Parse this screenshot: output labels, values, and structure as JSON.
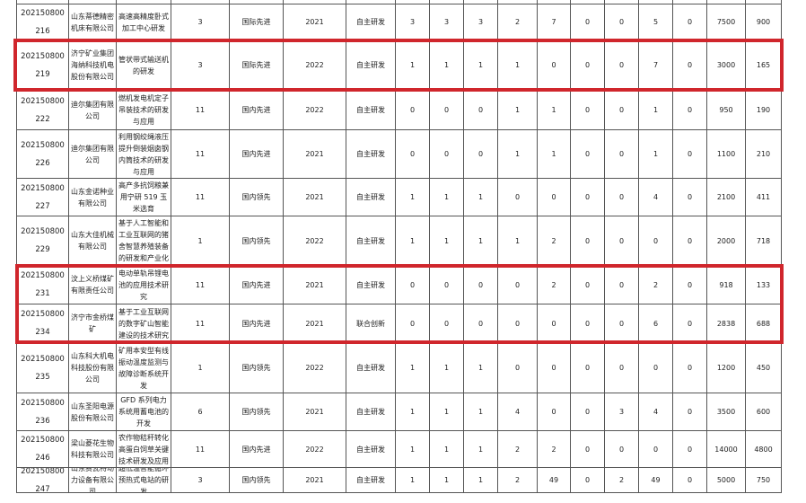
{
  "highlight_color": "#d0262c",
  "rows": [
    {
      "id": "",
      "company": "",
      "project": "",
      "n": "",
      "level": "",
      "year": "",
      "method": "",
      "v": [
        "",
        "",
        "",
        "",
        "",
        "",
        "",
        "",
        ""
      ],
      "a": "",
      "b": ""
    },
    {
      "id": "202150800216",
      "company": "山东蒂德精密机床有限公司",
      "project": "高速高精度卧式加工中心研发",
      "n": "3",
      "level": "国际先进",
      "year": "2021",
      "method": "自主研发",
      "v": [
        "3",
        "3",
        "3",
        "2",
        "7",
        "0",
        "0",
        "5",
        "0"
      ],
      "a": "7500",
      "b": "900"
    },
    {
      "id": "202150800219",
      "company": "济宁矿业集团海纳科技机电股份有限公司",
      "project": "管状带式输送机的研发",
      "n": "3",
      "level": "国际先进",
      "year": "2022",
      "method": "自主研发",
      "v": [
        "1",
        "1",
        "1",
        "1",
        "0",
        "0",
        "0",
        "7",
        "0"
      ],
      "a": "3000",
      "b": "165",
      "highlight": true
    },
    {
      "id": "202150800222",
      "company": "迪尔集团有限公司",
      "project": "燃机发电机定子吊装技术的研发与应用",
      "n": "11",
      "level": "国内先进",
      "year": "2022",
      "method": "自主研发",
      "v": [
        "0",
        "0",
        "0",
        "1",
        "1",
        "0",
        "0",
        "1",
        "0"
      ],
      "a": "950",
      "b": "190"
    },
    {
      "id": "202150800226",
      "company": "迪尔集团有限公司",
      "project": "利用钢绞绳液压提升倒装烟囱钢内筒技术的研发与应用",
      "n": "11",
      "level": "国内先进",
      "year": "2021",
      "method": "自主研发",
      "v": [
        "0",
        "0",
        "0",
        "1",
        "1",
        "0",
        "0",
        "1",
        "0"
      ],
      "a": "1100",
      "b": "210"
    },
    {
      "id": "202150800227",
      "company": "山东金诺种业有限公司",
      "project": "高产多抗饲粮兼用宁研 519 玉米选育",
      "n": "11",
      "level": "国内领先",
      "year": "2021",
      "method": "自主研发",
      "v": [
        "1",
        "1",
        "1",
        "0",
        "0",
        "0",
        "0",
        "4",
        "0"
      ],
      "a": "2100",
      "b": "411"
    },
    {
      "id": "202150800229",
      "company": "山东大佳机械有限公司",
      "project": "基于人工智能和工业互联网的猪舍智慧养殖装备的研发和产业化",
      "n": "1",
      "level": "国内领先",
      "year": "2022",
      "method": "自主研发",
      "v": [
        "1",
        "1",
        "1",
        "1",
        "2",
        "0",
        "0",
        "0",
        "0"
      ],
      "a": "2000",
      "b": "718"
    },
    {
      "id": "202150800231",
      "company": "汶上义桥煤矿有限责任公司",
      "project": "电动单轨吊锂电池的应用技术研究",
      "n": "11",
      "level": "国内先进",
      "year": "2021",
      "method": "自主研发",
      "v": [
        "0",
        "0",
        "0",
        "0",
        "2",
        "0",
        "0",
        "2",
        "0"
      ],
      "a": "918",
      "b": "133",
      "highlight": true
    },
    {
      "id": "202150800234",
      "company": "济宁市金桥煤矿",
      "project": "基于工业互联网的数字矿山智能建设的技术研究",
      "n": "11",
      "level": "国内先进",
      "year": "2021",
      "method": "联合创新",
      "v": [
        "0",
        "0",
        "0",
        "0",
        "0",
        "0",
        "0",
        "6",
        "0"
      ],
      "a": "2838",
      "b": "688",
      "highlight": true
    },
    {
      "id": "202150800235",
      "company": "山东科大机电科技股份有限公司",
      "project": "矿用本安型有线振动温度监测与故障诊断系统开发",
      "n": "1",
      "level": "国内领先",
      "year": "2022",
      "method": "自主研发",
      "v": [
        "1",
        "1",
        "1",
        "0",
        "0",
        "0",
        "0",
        "0",
        "0"
      ],
      "a": "1200",
      "b": "450"
    },
    {
      "id": "202150800236",
      "company": "山东圣阳电源股份有限公司",
      "project": "GFD 系列电力系统用蓄电池的开发",
      "n": "6",
      "level": "国内领先",
      "year": "2021",
      "method": "自主研发",
      "v": [
        "1",
        "1",
        "1",
        "4",
        "0",
        "0",
        "3",
        "4",
        "0"
      ],
      "a": "3500",
      "b": "600"
    },
    {
      "id": "202150800246",
      "company": "梁山菱花生物科技有限公司",
      "project": "农作物秸秆转化高蛋白饲草关键技术研发及应用",
      "n": "11",
      "level": "国内先进",
      "year": "2022",
      "method": "自主研发",
      "v": [
        "1",
        "1",
        "1",
        "2",
        "2",
        "0",
        "0",
        "0",
        "0"
      ],
      "a": "14000",
      "b": "4800"
    },
    {
      "id": "202150800247",
      "company": "山东赛瓦特动力设备有限公司",
      "project": "超低温智能循环预热式电站的研发",
      "n": "3",
      "level": "国内领先",
      "year": "2021",
      "method": "自主研发",
      "v": [
        "1",
        "1",
        "1",
        "2",
        "49",
        "0",
        "2",
        "49",
        "0"
      ],
      "a": "5000",
      "b": "750"
    }
  ]
}
